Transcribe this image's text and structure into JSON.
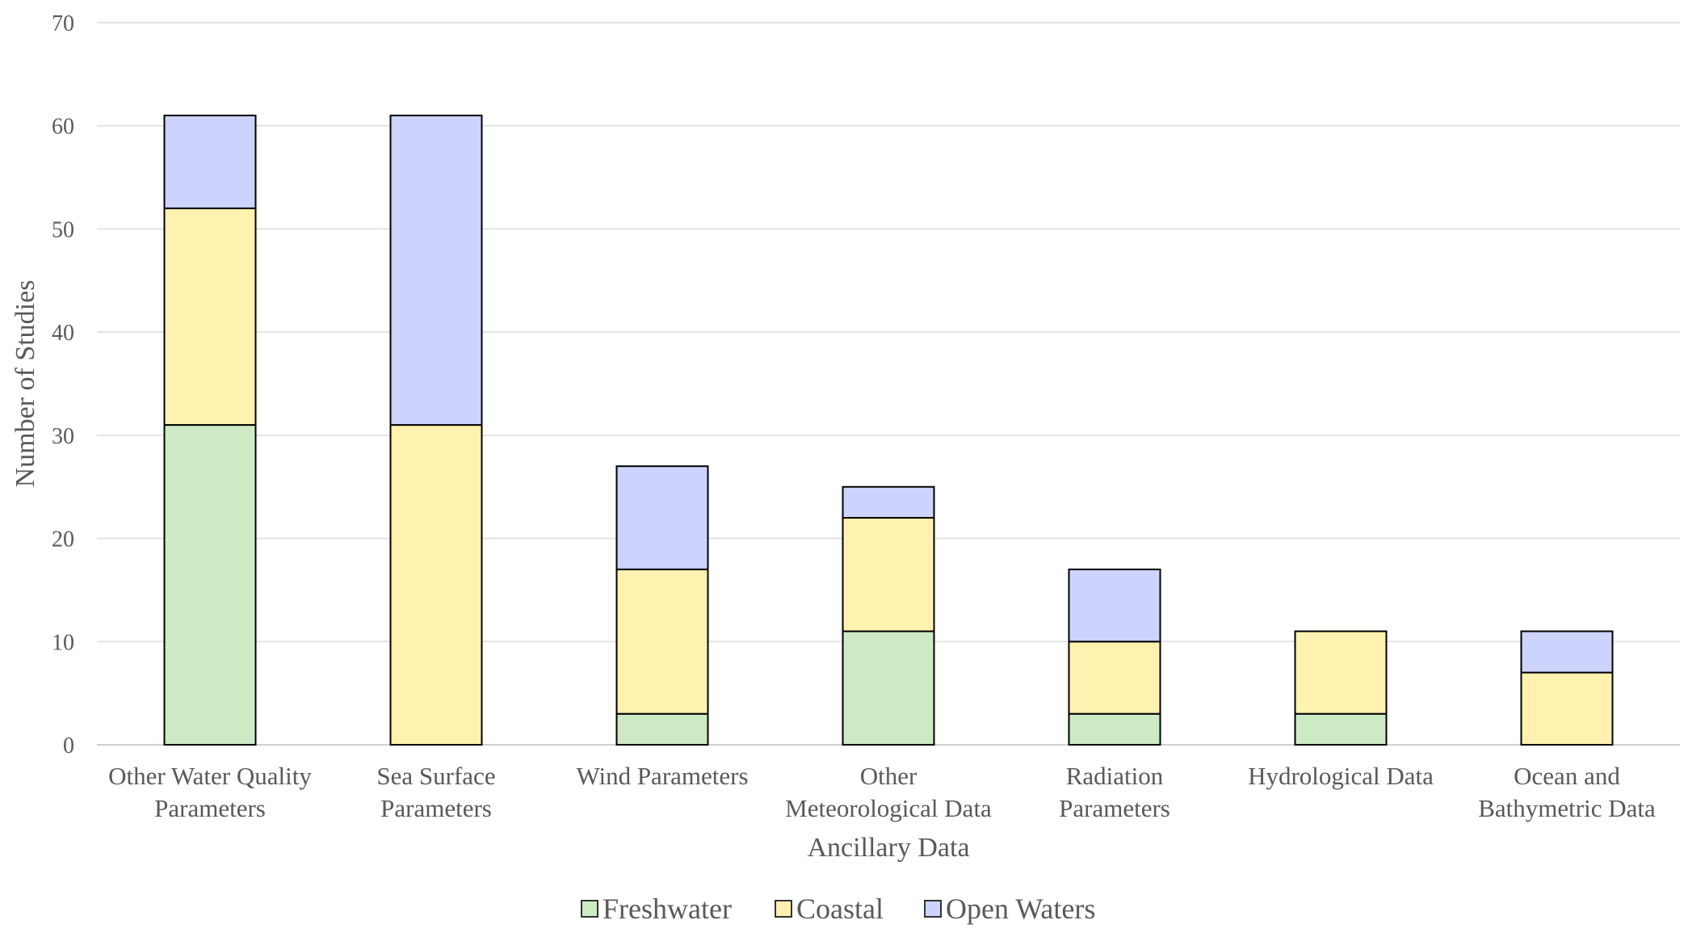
{
  "chart_data": {
    "type": "bar",
    "stacked": true,
    "title": "",
    "xlabel": "Ancillary  Data",
    "ylabel": "Number of Studies",
    "ylim": [
      0,
      70
    ],
    "yticks": [
      0,
      10,
      20,
      30,
      40,
      50,
      60,
      70
    ],
    "grid": true,
    "legend_position": "bottom",
    "categories": [
      [
        "Other Water Quality",
        "Parameters"
      ],
      [
        "Sea Surface",
        "Parameters"
      ],
      [
        "Wind Parameters"
      ],
      [
        "Other",
        "Meteorological Data"
      ],
      [
        "Radiation",
        "Parameters"
      ],
      [
        "Hydrological Data"
      ],
      [
        "Ocean and",
        "Bathymetric Data"
      ]
    ],
    "series": [
      {
        "name": "Freshwater",
        "color": "#cdeac5",
        "values": [
          31,
          0,
          3,
          11,
          3,
          3,
          0
        ]
      },
      {
        "name": "Coastal",
        "color": "#fff2b0",
        "values": [
          21,
          31,
          14,
          11,
          7,
          8,
          7
        ]
      },
      {
        "name": "Open Waters",
        "color": "#ccd3fd",
        "values": [
          9,
          30,
          10,
          3,
          7,
          0,
          4
        ]
      }
    ]
  }
}
